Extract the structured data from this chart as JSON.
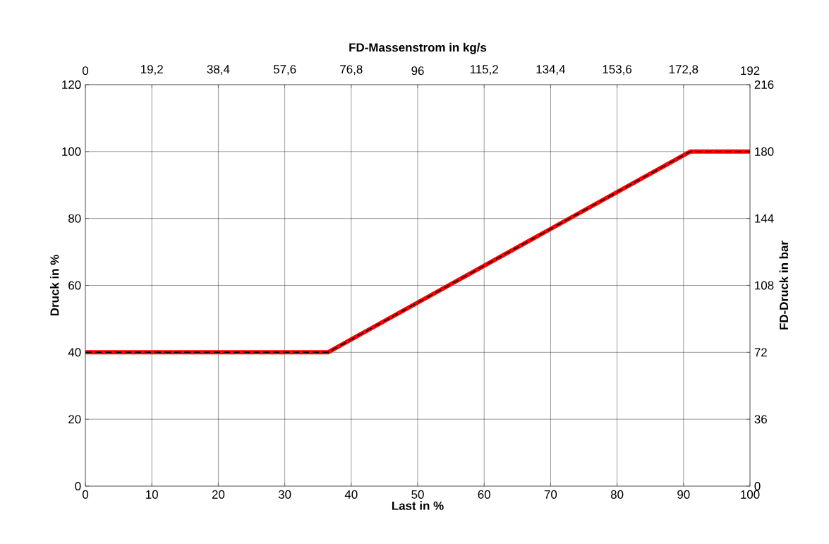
{
  "chart_data": {
    "type": "line",
    "xlabel": "Last in %",
    "ylabel": "Druck in %",
    "x2label": "FD-Massenstrom in kg/s",
    "y2label": "FD-Druck in bar",
    "x": [
      0,
      36.5,
      91,
      100
    ],
    "series": [
      {
        "color": "#ff0000",
        "line_style": "solid",
        "values": [
          40,
          40,
          100,
          100
        ]
      },
      {
        "color": "#000000",
        "line_style": "dashed",
        "values": [
          40,
          40,
          100,
          100
        ]
      }
    ],
    "xlim": [
      0,
      100
    ],
    "xticks": [
      0,
      10,
      20,
      30,
      40,
      50,
      60,
      70,
      80,
      90,
      100
    ],
    "ylim": [
      0,
      120
    ],
    "yticks": [
      0,
      20,
      40,
      60,
      80,
      100,
      120
    ],
    "x2lim": [
      0,
      192
    ],
    "x2ticks": [
      0,
      {
        "value": 19.2,
        "label": "19,2"
      },
      {
        "value": 38.4,
        "label": "38,4"
      },
      {
        "value": 57.6,
        "label": "57,6"
      },
      {
        "value": 76.8,
        "label": "76,8"
      },
      96,
      {
        "value": 115.2,
        "label": "115,2"
      },
      {
        "value": 134.4,
        "label": "134,4"
      },
      {
        "value": 153.6,
        "label": "153,6"
      },
      {
        "value": 172.8,
        "label": "172,8"
      },
      192
    ],
    "y2lim": [
      0,
      216
    ],
    "y2ticks": [
      0,
      36,
      72,
      108,
      144,
      180,
      216
    ],
    "grid": true,
    "marker": "none"
  }
}
